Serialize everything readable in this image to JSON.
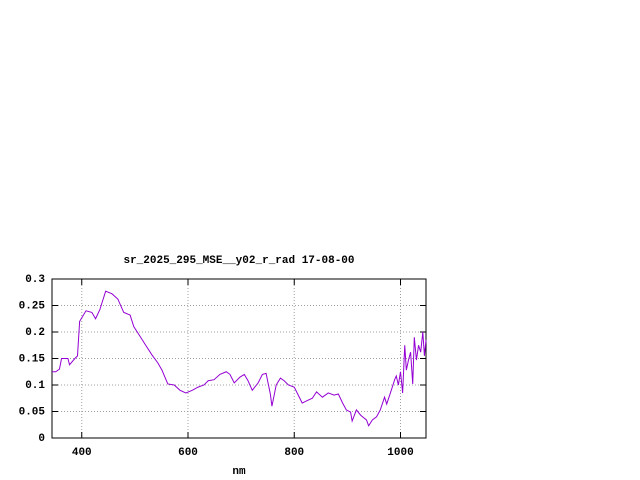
{
  "chart_data": {
    "type": "line",
    "title": "sr_2025_295_MSE__y02_r_rad 17-08-00",
    "x_label": "nm",
    "x": [
      344,
      351,
      358,
      362,
      374,
      377,
      387,
      392,
      396,
      408,
      419,
      426,
      434,
      445,
      457,
      468,
      479,
      491,
      498,
      509,
      521,
      532,
      543,
      551,
      562,
      574,
      585,
      596,
      608,
      619,
      630,
      638,
      649,
      660,
      672,
      679,
      687,
      698,
      706,
      713,
      721,
      732,
      740,
      747,
      755,
      758,
      766,
      774,
      781,
      789,
      800,
      808,
      815,
      823,
      834,
      842,
      853,
      864,
      875,
      883,
      891,
      898,
      906,
      909,
      917,
      925,
      936,
      940,
      947,
      955,
      962,
      970,
      974,
      981,
      989,
      992,
      996,
      1000,
      1004,
      1008,
      1011,
      1015,
      1019,
      1023,
      1026,
      1030,
      1034,
      1038,
      1042,
      1045,
      1048
    ],
    "series": [
      {
        "color": "#9400d3",
        "values": [
          0.125,
          0.125,
          0.13,
          0.15,
          0.15,
          0.138,
          0.15,
          0.155,
          0.22,
          0.24,
          0.237,
          0.225,
          0.242,
          0.277,
          0.272,
          0.262,
          0.237,
          0.232,
          0.21,
          0.193,
          0.174,
          0.157,
          0.142,
          0.128,
          0.102,
          0.1,
          0.09,
          0.085,
          0.09,
          0.096,
          0.1,
          0.108,
          0.11,
          0.12,
          0.125,
          0.12,
          0.104,
          0.115,
          0.12,
          0.108,
          0.09,
          0.104,
          0.12,
          0.122,
          0.083,
          0.06,
          0.1,
          0.113,
          0.108,
          0.1,
          0.096,
          0.08,
          0.066,
          0.07,
          0.075,
          0.087,
          0.077,
          0.085,
          0.081,
          0.083,
          0.066,
          0.053,
          0.049,
          0.032,
          0.053,
          0.043,
          0.034,
          0.023,
          0.034,
          0.04,
          0.053,
          0.077,
          0.064,
          0.085,
          0.11,
          0.117,
          0.1,
          0.125,
          0.085,
          0.175,
          0.128,
          0.147,
          0.162,
          0.102,
          0.19,
          0.147,
          0.175,
          0.162,
          0.2,
          0.155,
          0.185
        ]
      }
    ],
    "xlim": [
      344,
      1048
    ],
    "ylim": [
      0,
      0.3
    ],
    "xticks": [
      400,
      600,
      800,
      1000
    ],
    "yticks": [
      0,
      0.05,
      0.1,
      0.15,
      0.2,
      0.25,
      0.3
    ],
    "grid": true
  }
}
